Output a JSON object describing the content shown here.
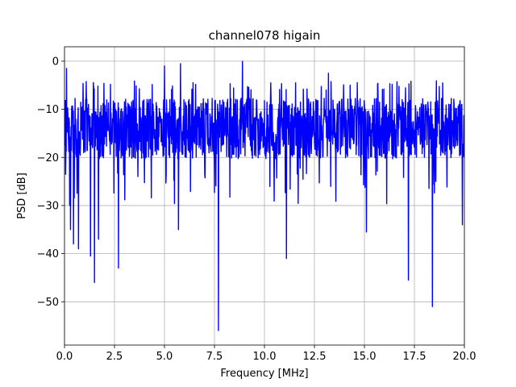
{
  "chart_data": {
    "type": "line",
    "title": "channel078 higain",
    "xlabel": "Frequency [MHz]",
    "ylabel": "PSD [dB]",
    "xlim": [
      0.0,
      20.0
    ],
    "ylim": [
      -59,
      3
    ],
    "x_ticks": [
      "0.0",
      "2.5",
      "5.0",
      "7.5",
      "10.0",
      "12.5",
      "15.0",
      "17.5",
      "20.0"
    ],
    "y_ticks": [
      "0",
      "−10",
      "−20",
      "−30",
      "−40",
      "−50"
    ],
    "grid": true,
    "series": [
      {
        "color": "#0000ff",
        "x_range": [
          0.0,
          20.0
        ],
        "baseline_db": -14,
        "typical_band_db": [
          -20,
          -6
        ],
        "noise_like": true,
        "peaks": [
          {
            "x": 0.1,
            "y": -1.5
          },
          {
            "x": 5.0,
            "y": -1.0
          },
          {
            "x": 5.8,
            "y": -0.5
          },
          {
            "x": 8.9,
            "y": 0.0
          },
          {
            "x": 13.2,
            "y": -2.5
          }
        ],
        "dips": [
          {
            "x": 0.3,
            "y": -35
          },
          {
            "x": 0.45,
            "y": -38
          },
          {
            "x": 0.7,
            "y": -39
          },
          {
            "x": 1.3,
            "y": -40.5
          },
          {
            "x": 1.5,
            "y": -46
          },
          {
            "x": 1.7,
            "y": -37
          },
          {
            "x": 2.7,
            "y": -43
          },
          {
            "x": 5.7,
            "y": -35
          },
          {
            "x": 7.7,
            "y": -56
          },
          {
            "x": 11.1,
            "y": -41
          },
          {
            "x": 15.1,
            "y": -35.5
          },
          {
            "x": 17.2,
            "y": -45.5
          },
          {
            "x": 18.4,
            "y": -51
          },
          {
            "x": 19.9,
            "y": -34
          }
        ]
      }
    ]
  }
}
